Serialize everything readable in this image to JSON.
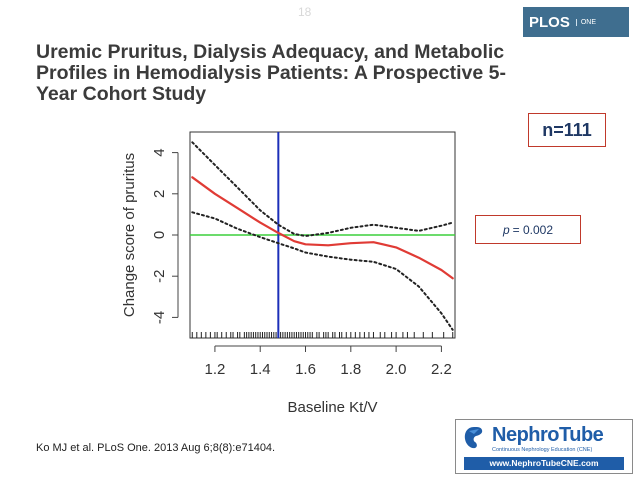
{
  "slide_number": "18",
  "logo": {
    "text": "PLOS",
    "sub": "ONE"
  },
  "title": "Uremic Pruritus, Dialysis Adequacy, and Metabolic Profiles in Hemodialysis Patients: A Prospective 5-Year Cohort Study",
  "n_label": "n=111",
  "p_label": {
    "letter": "p",
    "value": "= 0.002"
  },
  "citation": "Ko MJ et al. PLoS One. 2013 Aug 6;8(8):e71404.",
  "nephrotube": {
    "name": "NephroTube",
    "tagline": "Continuous Nephrology Education (CNE)",
    "url": "www.NephroTubeCNE.com"
  },
  "colors": {
    "fit": "#e03b35",
    "ci": "#222222",
    "reference": "#3ccf3c",
    "threshold": "#1c2fb8",
    "n_border": "#c0392b"
  },
  "chart_data": {
    "type": "line",
    "title": "",
    "xlabel": "Baseline Kt/V",
    "ylabel": "Change score of pruritus",
    "xlim": [
      1.09,
      2.26
    ],
    "ylim": [
      -5,
      5
    ],
    "xticks": [
      1.2,
      1.4,
      1.6,
      1.8,
      2.0,
      2.2
    ],
    "yticks": [
      4,
      2,
      0,
      -2,
      -4
    ],
    "reference_line_y": 0,
    "threshold_line_x": 1.48,
    "series": [
      {
        "name": "fitted",
        "style": "solid",
        "x": [
          1.1,
          1.2,
          1.3,
          1.4,
          1.48,
          1.55,
          1.6,
          1.7,
          1.8,
          1.9,
          2.0,
          2.1,
          2.2,
          2.25
        ],
        "y": [
          2.8,
          2.0,
          1.3,
          0.6,
          0.1,
          -0.3,
          -0.45,
          -0.5,
          -0.4,
          -0.35,
          -0.6,
          -1.1,
          -1.7,
          -2.1
        ]
      },
      {
        "name": "upper 95% CI",
        "style": "dotted",
        "x": [
          1.1,
          1.2,
          1.3,
          1.4,
          1.48,
          1.55,
          1.6,
          1.7,
          1.8,
          1.9,
          2.0,
          2.1,
          2.2,
          2.25
        ],
        "y": [
          4.5,
          3.4,
          2.3,
          1.2,
          0.5,
          0.05,
          -0.05,
          0.1,
          0.35,
          0.5,
          0.35,
          0.2,
          0.45,
          0.6
        ]
      },
      {
        "name": "lower 95% CI",
        "style": "dotted",
        "x": [
          1.1,
          1.2,
          1.3,
          1.4,
          1.48,
          1.55,
          1.6,
          1.7,
          1.8,
          1.9,
          2.0,
          2.1,
          2.2,
          2.25
        ],
        "y": [
          1.1,
          0.8,
          0.3,
          -0.1,
          -0.4,
          -0.65,
          -0.85,
          -1.05,
          -1.2,
          -1.3,
          -1.65,
          -2.5,
          -3.8,
          -4.6
        ]
      }
    ],
    "rug_x": [
      1.1,
      1.12,
      1.14,
      1.16,
      1.18,
      1.2,
      1.21,
      1.23,
      1.25,
      1.27,
      1.28,
      1.3,
      1.31,
      1.33,
      1.34,
      1.35,
      1.36,
      1.37,
      1.38,
      1.39,
      1.4,
      1.41,
      1.42,
      1.43,
      1.44,
      1.45,
      1.46,
      1.47,
      1.48,
      1.49,
      1.5,
      1.51,
      1.52,
      1.53,
      1.54,
      1.55,
      1.56,
      1.57,
      1.58,
      1.59,
      1.6,
      1.61,
      1.62,
      1.63,
      1.65,
      1.66,
      1.68,
      1.69,
      1.7,
      1.72,
      1.73,
      1.75,
      1.76,
      1.78,
      1.8,
      1.82,
      1.84,
      1.86,
      1.88,
      1.9,
      1.93,
      1.95,
      1.98,
      2.0,
      2.03,
      2.05,
      2.08,
      2.12,
      2.16,
      2.21,
      2.25
    ]
  }
}
